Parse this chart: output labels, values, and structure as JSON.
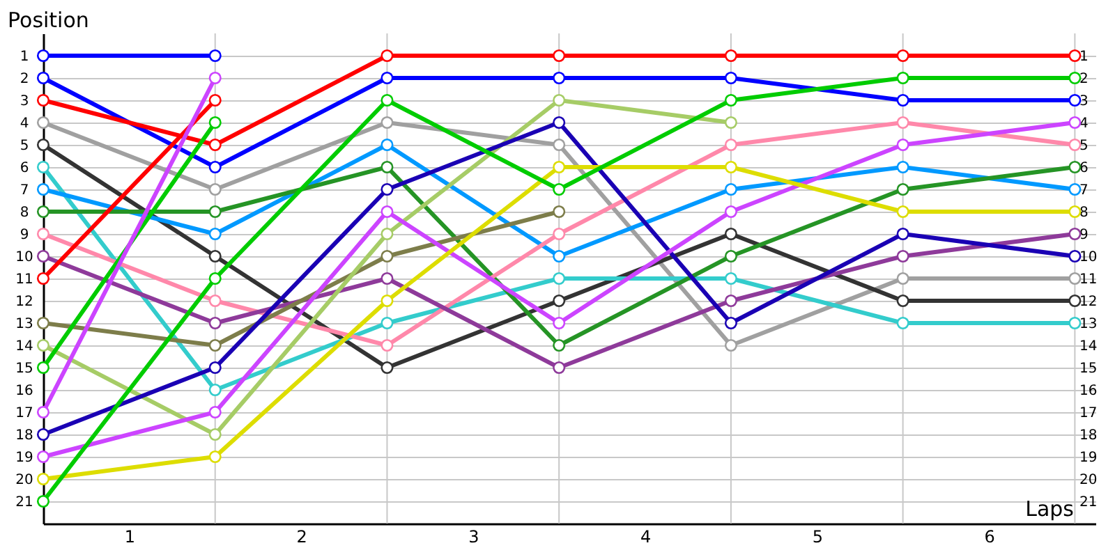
{
  "chart_data": {
    "type": "line",
    "xlabel": "Laps",
    "ylabel": "Position",
    "x": [
      0,
      1,
      2,
      3,
      4,
      5,
      6
    ],
    "xlim": [
      0,
      6.12
    ],
    "xticks": [
      {
        "value": 0.5,
        "label": "1"
      },
      {
        "value": 1,
        "label": null
      },
      {
        "value": 1.5,
        "label": "2"
      },
      {
        "value": 2,
        "label": null
      },
      {
        "value": 2.5,
        "label": "3"
      },
      {
        "value": 3,
        "label": null
      },
      {
        "value": 3.5,
        "label": "4"
      },
      {
        "value": 4,
        "label": null
      },
      {
        "value": 4.5,
        "label": "5"
      },
      {
        "value": 5,
        "label": null
      },
      {
        "value": 5.5,
        "label": "6"
      },
      {
        "value": 6,
        "label": null
      }
    ],
    "ylim": [
      22,
      0
    ],
    "yticks": [
      1,
      2,
      3,
      4,
      5,
      6,
      7,
      8,
      9,
      10,
      11,
      12,
      13,
      14,
      15,
      16,
      17,
      18,
      19,
      20,
      21
    ],
    "y2lim": [
      22,
      0
    ],
    "y2ticks": [
      1,
      2,
      3,
      4,
      5,
      6,
      7,
      8,
      9,
      10,
      11,
      12,
      13,
      14,
      15,
      16,
      17,
      18,
      19,
      20,
      21
    ],
    "grid": true,
    "legend": false,
    "marker": "circle",
    "line_style": "solid",
    "series": [
      {
        "color": "#0000ff",
        "values": [
          1,
          1,
          null,
          null,
          null,
          null,
          null
        ]
      },
      {
        "color": "#0000ff",
        "values": [
          2,
          6,
          2,
          2,
          2,
          3,
          3
        ]
      },
      {
        "color": "#ff0000",
        "values": [
          3,
          5,
          1,
          1,
          1,
          1,
          1
        ]
      },
      {
        "color": "#a0a0a0",
        "values": [
          4,
          7,
          4,
          5,
          14,
          11,
          11
        ]
      },
      {
        "color": "#333333",
        "values": [
          5,
          10,
          15,
          12,
          9,
          12,
          12
        ]
      },
      {
        "color": "#33cccc",
        "values": [
          6,
          16,
          13,
          11,
          11,
          13,
          13
        ]
      },
      {
        "color": "#0099ff",
        "values": [
          7,
          9,
          5,
          10,
          7,
          6,
          7
        ]
      },
      {
        "color": "#259425",
        "values": [
          8,
          8,
          6,
          14,
          10,
          7,
          6
        ]
      },
      {
        "color": "#ff88aa",
        "values": [
          9,
          12,
          14,
          9,
          5,
          4,
          5
        ]
      },
      {
        "color": "#8e3a9a",
        "values": [
          10,
          13,
          11,
          15,
          12,
          10,
          9
        ]
      },
      {
        "color": "#ff0000",
        "values": [
          11,
          3,
          null,
          null,
          null,
          null,
          null
        ]
      },
      {
        "color": "#7d7d4a",
        "values": [
          13,
          14,
          10,
          8,
          null,
          null,
          null
        ]
      },
      {
        "color": "#a6cc66",
        "values": [
          14,
          18,
          9,
          3,
          4,
          null,
          null
        ]
      },
      {
        "color": "#00cc00",
        "values": [
          15,
          4,
          null,
          null,
          null,
          null,
          null
        ]
      },
      {
        "color": "#cc44ff",
        "values": [
          17,
          2,
          null,
          null,
          null,
          null,
          null
        ]
      },
      {
        "color": "#1a00b4",
        "values": [
          18,
          15,
          7,
          4,
          13,
          9,
          10
        ]
      },
      {
        "color": "#cc44ff",
        "values": [
          19,
          17,
          8,
          13,
          8,
          5,
          4
        ]
      },
      {
        "color": "#dddd00",
        "values": [
          20,
          19,
          12,
          6,
          6,
          8,
          8
        ]
      },
      {
        "color": "#00cc00",
        "values": [
          21,
          11,
          3,
          7,
          3,
          2,
          2
        ]
      }
    ]
  }
}
